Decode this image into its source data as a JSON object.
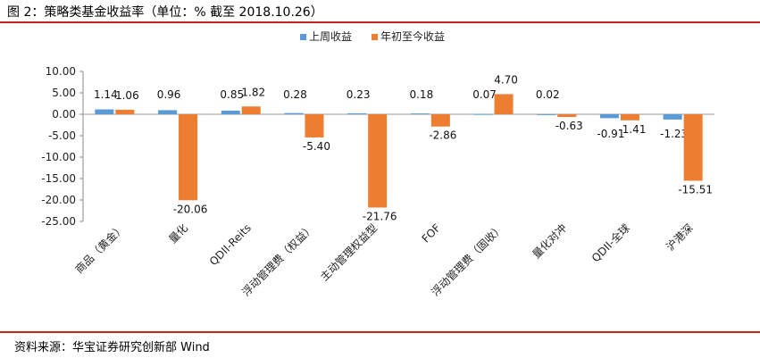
{
  "figure": {
    "title": "图 2：策略类基金收益率（单位：% 截至 2018.10.26）",
    "source": "资料来源：华宝证券研究创新部 Wind"
  },
  "chart_data": {
    "type": "bar",
    "categories": [
      "商品（黄金）",
      "量化",
      "QDII-Reits",
      "浮动管理费（权益）",
      "主动管理权益型",
      "FOF",
      "浮动管理费（固收）",
      "量化对冲",
      "QDII-全球",
      "沪港深"
    ],
    "series": [
      {
        "name": "上周收益",
        "values": [
          1.14,
          0.96,
          0.85,
          0.28,
          0.23,
          0.18,
          0.07,
          0.02,
          -0.91,
          -1.23
        ]
      },
      {
        "name": "年初至今收益",
        "values": [
          1.06,
          -20.06,
          1.82,
          -5.4,
          -21.76,
          -2.86,
          4.7,
          -0.63,
          -1.41,
          -15.51
        ]
      }
    ],
    "ylim": [
      -25,
      10
    ],
    "yticks": [
      "10.00",
      "5.00",
      "0.00",
      "-5.00",
      "-10.00",
      "-15.00",
      "-20.00",
      "-25.00"
    ],
    "legend_position": "top",
    "colors": {
      "上周收益": "#5b9bd5",
      "年初至今收益": "#ed7d31"
    }
  }
}
